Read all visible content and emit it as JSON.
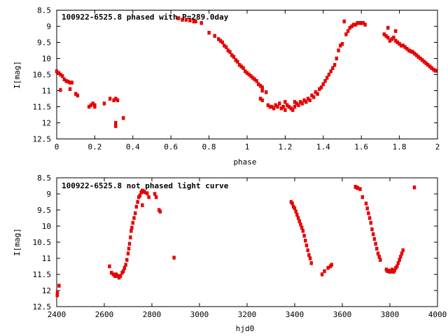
{
  "chart_data": [
    {
      "type": "scatter",
      "title": "100922-6525.8 phased with P=289.0day",
      "xlabel": "phase",
      "ylabel": "I[mag]",
      "xlim": [
        0,
        2
      ],
      "ylim": [
        12.5,
        8.5
      ],
      "y_inverted": true,
      "xticks": [
        "0",
        "0.2",
        "0.4",
        "0.6",
        "0.8",
        "1",
        "1.2",
        "1.4",
        "1.6",
        "1.8",
        "2"
      ],
      "yticks": [
        "8.5",
        "9",
        "9.5",
        "10",
        "10.5",
        "11",
        "11.5",
        "12",
        "12.5"
      ],
      "marker_color": "#ee0000",
      "points": [
        [
          0.0,
          10.4
        ],
        [
          0.01,
          10.45
        ],
        [
          0.02,
          10.5
        ],
        [
          0.03,
          10.55
        ],
        [
          0.04,
          10.65
        ],
        [
          0.05,
          10.7
        ],
        [
          0.06,
          10.72
        ],
        [
          0.07,
          10.75
        ],
        [
          0.08,
          10.75
        ],
        [
          0.02,
          10.98
        ],
        [
          0.07,
          10.95
        ],
        [
          0.1,
          11.1
        ],
        [
          0.11,
          11.15
        ],
        [
          0.17,
          11.5
        ],
        [
          0.18,
          11.45
        ],
        [
          0.19,
          11.4
        ],
        [
          0.2,
          11.45
        ],
        [
          0.2,
          11.5
        ],
        [
          0.25,
          11.4
        ],
        [
          0.28,
          11.25
        ],
        [
          0.3,
          11.3
        ],
        [
          0.31,
          11.25
        ],
        [
          0.32,
          11.3
        ],
        [
          0.31,
          12.0
        ],
        [
          0.31,
          12.1
        ],
        [
          0.35,
          11.85
        ],
        [
          0.64,
          8.75
        ],
        [
          0.66,
          8.8
        ],
        [
          0.68,
          8.8
        ],
        [
          0.7,
          8.82
        ],
        [
          0.72,
          8.85
        ],
        [
          0.73,
          8.85
        ],
        [
          0.76,
          8.9
        ],
        [
          0.8,
          9.2
        ],
        [
          0.83,
          9.3
        ],
        [
          0.85,
          9.4
        ],
        [
          0.86,
          9.45
        ],
        [
          0.87,
          9.5
        ],
        [
          0.88,
          9.6
        ],
        [
          0.89,
          9.65
        ],
        [
          0.9,
          9.75
        ],
        [
          0.91,
          9.8
        ],
        [
          0.92,
          9.9
        ],
        [
          0.93,
          9.95
        ],
        [
          0.94,
          10.05
        ],
        [
          0.95,
          10.1
        ],
        [
          0.96,
          10.2
        ],
        [
          0.97,
          10.25
        ],
        [
          0.98,
          10.3
        ],
        [
          0.99,
          10.4
        ],
        [
          1.0,
          10.45
        ],
        [
          1.01,
          10.5
        ],
        [
          1.02,
          10.55
        ],
        [
          1.03,
          10.6
        ],
        [
          1.04,
          10.65
        ],
        [
          1.05,
          10.7
        ],
        [
          1.06,
          10.8
        ],
        [
          1.07,
          10.85
        ],
        [
          1.08,
          10.9
        ],
        [
          1.08,
          11.0
        ],
        [
          1.1,
          11.05
        ],
        [
          1.07,
          11.25
        ],
        [
          1.08,
          11.3
        ],
        [
          1.11,
          11.45
        ],
        [
          1.12,
          11.5
        ],
        [
          1.13,
          11.5
        ],
        [
          1.14,
          11.55
        ],
        [
          1.15,
          11.45
        ],
        [
          1.16,
          11.5
        ],
        [
          1.17,
          11.4
        ],
        [
          1.18,
          11.55
        ],
        [
          1.19,
          11.5
        ],
        [
          1.2,
          11.35
        ],
        [
          1.2,
          11.6
        ],
        [
          1.21,
          11.45
        ],
        [
          1.22,
          11.5
        ],
        [
          1.23,
          11.55
        ],
        [
          1.24,
          11.6
        ],
        [
          1.25,
          11.35
        ],
        [
          1.25,
          11.5
        ],
        [
          1.26,
          11.4
        ],
        [
          1.27,
          11.45
        ],
        [
          1.28,
          11.35
        ],
        [
          1.29,
          11.4
        ],
        [
          1.3,
          11.3
        ],
        [
          1.31,
          11.35
        ],
        [
          1.32,
          11.25
        ],
        [
          1.33,
          11.3
        ],
        [
          1.34,
          11.15
        ],
        [
          1.35,
          11.2
        ],
        [
          1.36,
          11.05
        ],
        [
          1.37,
          11.1
        ],
        [
          1.38,
          10.95
        ],
        [
          1.39,
          10.9
        ],
        [
          1.4,
          10.8
        ],
        [
          1.41,
          10.7
        ],
        [
          1.42,
          10.6
        ],
        [
          1.43,
          10.5
        ],
        [
          1.44,
          10.4
        ],
        [
          1.45,
          10.3
        ],
        [
          1.46,
          10.2
        ],
        [
          1.47,
          10.0
        ],
        [
          1.48,
          9.75
        ],
        [
          1.49,
          9.6
        ],
        [
          1.5,
          9.55
        ],
        [
          1.51,
          8.85
        ],
        [
          1.52,
          9.25
        ],
        [
          1.53,
          9.15
        ],
        [
          1.54,
          9.05
        ],
        [
          1.55,
          9.0
        ],
        [
          1.56,
          8.95
        ],
        [
          1.57,
          8.95
        ],
        [
          1.58,
          8.9
        ],
        [
          1.59,
          8.9
        ],
        [
          1.6,
          8.9
        ],
        [
          1.61,
          8.9
        ],
        [
          1.62,
          8.95
        ],
        [
          1.72,
          9.25
        ],
        [
          1.73,
          9.3
        ],
        [
          1.74,
          9.35
        ],
        [
          1.74,
          9.05
        ],
        [
          1.75,
          9.45
        ],
        [
          1.76,
          9.4
        ],
        [
          1.77,
          9.35
        ],
        [
          1.78,
          9.15
        ],
        [
          1.78,
          9.45
        ],
        [
          1.79,
          9.5
        ],
        [
          1.8,
          9.55
        ],
        [
          1.81,
          9.6
        ],
        [
          1.82,
          9.6
        ],
        [
          1.83,
          9.65
        ],
        [
          1.84,
          9.7
        ],
        [
          1.85,
          9.75
        ],
        [
          1.86,
          9.78
        ],
        [
          1.87,
          9.8
        ],
        [
          1.88,
          9.85
        ],
        [
          1.89,
          9.9
        ],
        [
          1.9,
          9.95
        ],
        [
          1.91,
          10.0
        ],
        [
          1.92,
          10.05
        ],
        [
          1.93,
          10.1
        ],
        [
          1.94,
          10.15
        ],
        [
          1.95,
          10.2
        ],
        [
          1.96,
          10.25
        ],
        [
          1.97,
          10.3
        ],
        [
          1.98,
          10.35
        ],
        [
          1.99,
          10.38
        ]
      ]
    },
    {
      "type": "scatter",
      "title": "100922-6525.8 not phased light curve",
      "xlabel": "hjd0",
      "ylabel": "I[mag]",
      "xlim": [
        2400,
        4000
      ],
      "ylim": [
        12.5,
        8.5
      ],
      "y_inverted": true,
      "xticks": [
        "2400",
        "2600",
        "2800",
        "3000",
        "3200",
        "3400",
        "3600",
        "3800",
        "4000"
      ],
      "yticks": [
        "8.5",
        "9",
        "9.5",
        "10",
        "10.5",
        "11",
        "11.5",
        "12",
        "12.5"
      ],
      "marker_color": "#ee0000",
      "points": [
        [
          2402,
          12.15
        ],
        [
          2403,
          12.05
        ],
        [
          2410,
          11.85
        ],
        [
          2622,
          11.25
        ],
        [
          2630,
          11.45
        ],
        [
          2638,
          11.5
        ],
        [
          2645,
          11.55
        ],
        [
          2650,
          11.5
        ],
        [
          2656,
          11.55
        ],
        [
          2662,
          11.6
        ],
        [
          2668,
          11.55
        ],
        [
          2675,
          11.45
        ],
        [
          2680,
          11.4
        ],
        [
          2685,
          11.3
        ],
        [
          2690,
          11.2
        ],
        [
          2695,
          11.05
        ],
        [
          2700,
          10.85
        ],
        [
          2703,
          10.7
        ],
        [
          2706,
          10.55
        ],
        [
          2710,
          10.35
        ],
        [
          2713,
          10.15
        ],
        [
          2716,
          10.05
        ],
        [
          2720,
          9.9
        ],
        [
          2725,
          9.75
        ],
        [
          2730,
          9.6
        ],
        [
          2735,
          9.4
        ],
        [
          2740,
          9.25
        ],
        [
          2745,
          9.1
        ],
        [
          2750,
          9.05
        ],
        [
          2755,
          8.95
        ],
        [
          2760,
          8.9
        ],
        [
          2765,
          8.92
        ],
        [
          2770,
          8.95
        ],
        [
          2760,
          9.35
        ],
        [
          2780,
          8.98
        ],
        [
          2787,
          9.1
        ],
        [
          2812,
          9.0
        ],
        [
          2818,
          9.1
        ],
        [
          2830,
          9.5
        ],
        [
          2835,
          9.55
        ],
        [
          2893,
          10.98
        ],
        [
          3385,
          9.25
        ],
        [
          3390,
          9.3
        ],
        [
          3395,
          9.4
        ],
        [
          3400,
          9.45
        ],
        [
          3405,
          9.55
        ],
        [
          3410,
          9.65
        ],
        [
          3415,
          9.75
        ],
        [
          3420,
          9.85
        ],
        [
          3425,
          9.95
        ],
        [
          3430,
          10.05
        ],
        [
          3435,
          10.15
        ],
        [
          3440,
          10.3
        ],
        [
          3445,
          10.45
        ],
        [
          3450,
          10.6
        ],
        [
          3455,
          10.75
        ],
        [
          3460,
          10.9
        ],
        [
          3465,
          11.0
        ],
        [
          3470,
          11.15
        ],
        [
          3515,
          11.5
        ],
        [
          3525,
          11.4
        ],
        [
          3540,
          11.3
        ],
        [
          3550,
          11.25
        ],
        [
          3555,
          11.2
        ],
        [
          3655,
          8.78
        ],
        [
          3660,
          8.8
        ],
        [
          3665,
          8.82
        ],
        [
          3675,
          8.85
        ],
        [
          3685,
          9.1
        ],
        [
          3700,
          9.3
        ],
        [
          3705,
          9.45
        ],
        [
          3710,
          9.6
        ],
        [
          3715,
          9.75
        ],
        [
          3720,
          9.9
        ],
        [
          3725,
          10.1
        ],
        [
          3730,
          10.25
        ],
        [
          3735,
          10.4
        ],
        [
          3740,
          10.55
        ],
        [
          3745,
          10.7
        ],
        [
          3750,
          10.85
        ],
        [
          3755,
          10.95
        ],
        [
          3760,
          11.05
        ],
        [
          3785,
          11.35
        ],
        [
          3790,
          11.4
        ],
        [
          3795,
          11.38
        ],
        [
          3800,
          11.42
        ],
        [
          3805,
          11.4
        ],
        [
          3810,
          11.35
        ],
        [
          3815,
          11.42
        ],
        [
          3820,
          11.38
        ],
        [
          3825,
          11.3
        ],
        [
          3830,
          11.25
        ],
        [
          3835,
          11.15
        ],
        [
          3840,
          11.05
        ],
        [
          3845,
          10.95
        ],
        [
          3850,
          10.85
        ],
        [
          3855,
          10.75
        ],
        [
          3903,
          8.8
        ]
      ]
    }
  ]
}
